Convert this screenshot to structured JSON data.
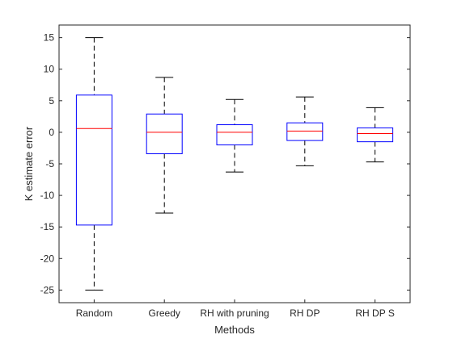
{
  "chart_data": {
    "type": "box",
    "xlabel": "Methods",
    "ylabel": "K estimate error",
    "ylim": [
      -27,
      17
    ],
    "yticks": [
      15,
      10,
      5,
      0,
      -5,
      -10,
      -15,
      -20,
      -25
    ],
    "grid": false,
    "categories": [
      "Random",
      "Greedy",
      "RH with pruning",
      "RH DP",
      "RH DP S"
    ],
    "boxes": [
      {
        "min": -25,
        "q1": -14.7,
        "median": 0.6,
        "q3": 5.9,
        "max": 15
      },
      {
        "min": -12.8,
        "q1": -3.4,
        "median": 0,
        "q3": 2.9,
        "max": 8.7
      },
      {
        "min": -6.3,
        "q1": -2,
        "median": 0,
        "q3": 1.2,
        "max": 5.2
      },
      {
        "min": -5.3,
        "q1": -1.3,
        "median": 0.2,
        "q3": 1.5,
        "max": 5.6
      },
      {
        "min": -4.7,
        "q1": -1.5,
        "median": -0.2,
        "q3": 0.7,
        "max": 3.9
      }
    ],
    "colors": {
      "box": "#0000ff",
      "median": "#ff0000",
      "whisker": "#000000",
      "axis": "#262626"
    }
  }
}
